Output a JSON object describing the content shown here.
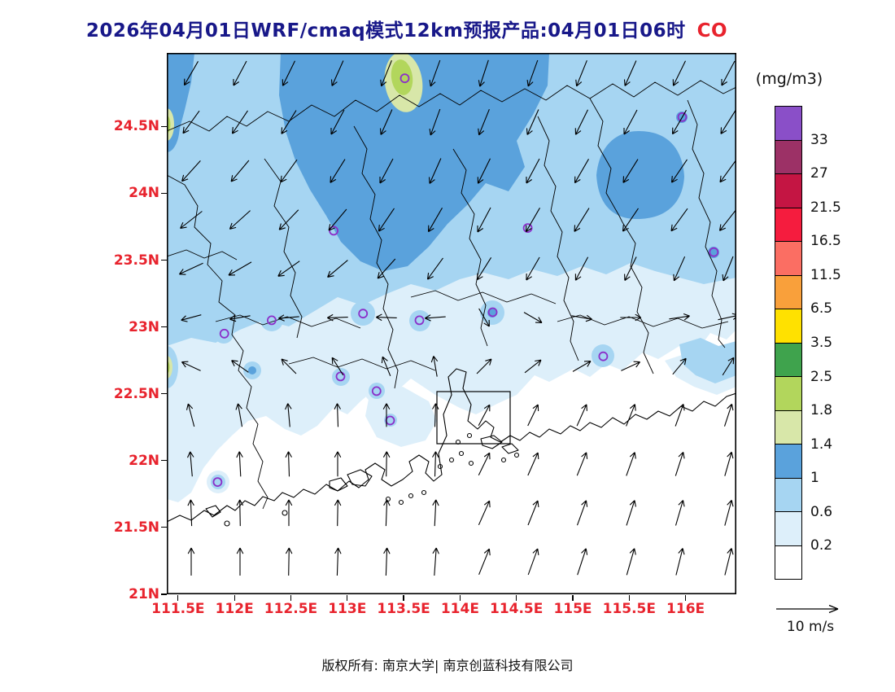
{
  "title": {
    "text": "2026年04月01日WRF/cmaq模式12km预报产品:04月01日06时",
    "species": "CO"
  },
  "footer": {
    "text": "版权所有: 南京大学| 南京创蓝科技有限公司"
  },
  "colorbar": {
    "units_label": "(mg/m3)"
  },
  "wind_legend": {
    "label": "10 m/s"
  },
  "chart_data": {
    "type": "heatmap",
    "title": "2026年04月01日WRF/cmaq模式12km预报产品:04月01日06时 CO",
    "model": "WRF/cmaq",
    "resolution": "12km",
    "forecast_valid": "04月01日06时",
    "pollutant": "CO",
    "units": "mg/m3",
    "lon_range": [
      111.4,
      116.45
    ],
    "lat_range": [
      21.0,
      25.05
    ],
    "lon_ticks": [
      {
        "value": 111.5,
        "label": "111.5E"
      },
      {
        "value": 112,
        "label": "112E"
      },
      {
        "value": 112.5,
        "label": "112.5E"
      },
      {
        "value": 113,
        "label": "113E"
      },
      {
        "value": 113.5,
        "label": "113.5E"
      },
      {
        "value": 114,
        "label": "114E"
      },
      {
        "value": 114.5,
        "label": "114.5E"
      },
      {
        "value": 115,
        "label": "115E"
      },
      {
        "value": 115.5,
        "label": "115.5E"
      },
      {
        "value": 116,
        "label": "116E"
      }
    ],
    "lat_ticks": [
      {
        "value": 24.5,
        "label": "24.5N"
      },
      {
        "value": 24,
        "label": "24N"
      },
      {
        "value": 23.5,
        "label": "23.5N"
      },
      {
        "value": 23,
        "label": "23N"
      },
      {
        "value": 22.5,
        "label": "22.5N"
      },
      {
        "value": 22,
        "label": "22N"
      },
      {
        "value": 21.5,
        "label": "21.5N"
      },
      {
        "value": 21,
        "label": "21N"
      }
    ],
    "contour_levels": [
      0.2,
      0.6,
      1,
      1.4,
      1.8,
      2.5,
      3.5,
      6.5,
      11.5,
      16.5,
      21.5,
      27,
      33
    ],
    "contour_colors_bottom_to_top": [
      "#ffffff",
      "#ddeffa",
      "#a6d5f2",
      "#5aa2dc",
      "#d8e7a9",
      "#b2d65c",
      "#3fa34d",
      "#ffe100",
      "#f9a03b",
      "#fb6e63",
      "#f51c3e",
      "#c41543",
      "#9c3166",
      "#8a4fc8"
    ],
    "field_summary": "CO 0.6-1.4 mg/m3 band across northern Guangdong; local maxima 1.4-2.5 mg/m3 near 113.5E/24.9N and at the western boundary; below 0.2 mg/m3 over the southern coast and sea",
    "city_markers": [
      {
        "lon": 113.51,
        "lat": 24.86
      },
      {
        "lon": 115.97,
        "lat": 24.57
      },
      {
        "lon": 112.88,
        "lat": 23.72
      },
      {
        "lon": 114.6,
        "lat": 23.74
      },
      {
        "lon": 116.25,
        "lat": 23.56
      },
      {
        "lon": 112.33,
        "lat": 23.05
      },
      {
        "lon": 111.91,
        "lat": 22.95
      },
      {
        "lon": 113.14,
        "lat": 23.1
      },
      {
        "lon": 113.64,
        "lat": 23.05
      },
      {
        "lon": 114.29,
        "lat": 23.11
      },
      {
        "lon": 115.27,
        "lat": 22.78
      },
      {
        "lon": 112.94,
        "lat": 22.63
      },
      {
        "lon": 113.26,
        "lat": 22.52
      },
      {
        "lon": 113.38,
        "lat": 22.3
      },
      {
        "lon": 111.85,
        "lat": 21.84
      }
    ],
    "wind": {
      "reference_speed_ms": 10,
      "grid_cols": 12,
      "grid_rows": 12,
      "angles_deg": [
        [
          240,
          242,
          244,
          246,
          248,
          250,
          252,
          250,
          248,
          246,
          244,
          242
        ],
        [
          234,
          236,
          238,
          242,
          246,
          250,
          248,
          246,
          244,
          242,
          240,
          238
        ],
        [
          228,
          230,
          234,
          238,
          242,
          246,
          244,
          242,
          240,
          238,
          236,
          234
        ],
        [
          218,
          222,
          226,
          230,
          236,
          240,
          242,
          240,
          238,
          236,
          234,
          232
        ],
        [
          205,
          210,
          215,
          220,
          228,
          234,
          238,
          240,
          242,
          244,
          246,
          248
        ],
        [
          195,
          190,
          185,
          182,
          178,
          184,
          300,
          330,
          350,
          0,
          8,
          12
        ],
        [
          155,
          145,
          135,
          122,
          112,
          100,
          45,
          38,
          30,
          25,
          50,
          58
        ],
        [
          105,
          100,
          95,
          92,
          90,
          88,
          62,
          64,
          66,
          68,
          70,
          72
        ],
        [
          95,
          93,
          92,
          90,
          89,
          88,
          64,
          66,
          68,
          70,
          72,
          74
        ],
        [
          92,
          91,
          90,
          89,
          88,
          87,
          66,
          68,
          70,
          72,
          74,
          75
        ],
        [
          90,
          90,
          89,
          88,
          88,
          86,
          68,
          70,
          72,
          74,
          76,
          76
        ],
        [
          88,
          88,
          88,
          87,
          86,
          85,
          70,
          72,
          74,
          76,
          78,
          78
        ]
      ]
    }
  }
}
